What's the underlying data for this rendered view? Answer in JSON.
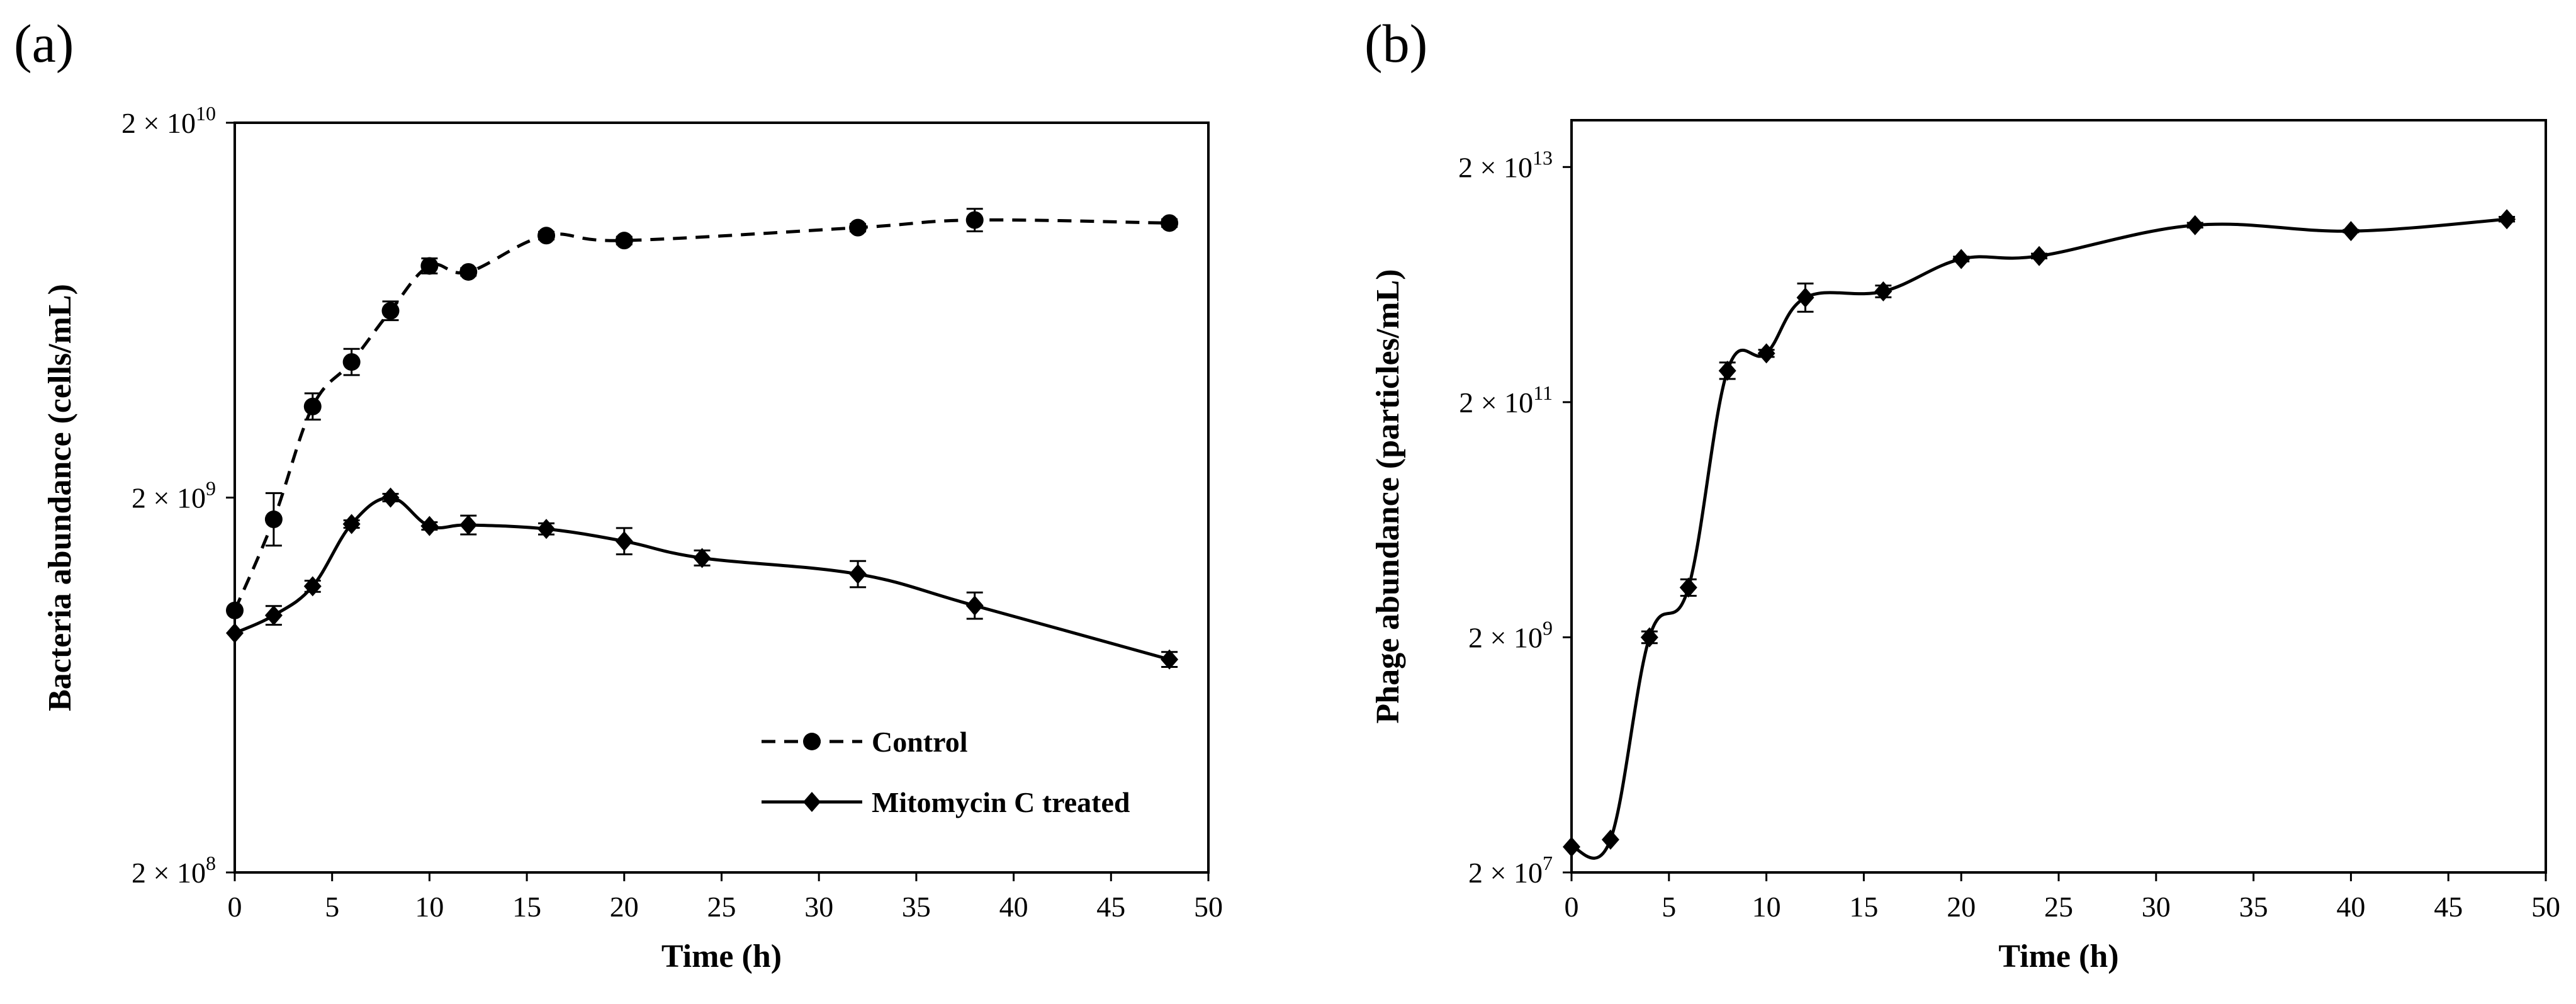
{
  "chart_data": [
    {
      "panel_label": "(a)",
      "type": "line",
      "xlabel": "Time (h)",
      "ylabel": "Bacteria abundance (cells/mL)",
      "yscale": "log",
      "xlim": [
        0,
        50
      ],
      "ylim": [
        200000000,
        20000000000
      ],
      "xticks": [
        0,
        5,
        10,
        15,
        20,
        25,
        30,
        35,
        40,
        45,
        50
      ],
      "xtick_labels": [
        "0",
        "5",
        "10",
        "15",
        "20",
        "25",
        "30",
        "35",
        "40",
        "45",
        "50"
      ],
      "yticks": [
        200000000,
        2000000000,
        20000000000
      ],
      "ytick_labels": [
        {
          "base": "2 × 10",
          "exp": "8"
        },
        {
          "base": "2 × 10",
          "exp": "9"
        },
        {
          "base": "2 × 10",
          "exp": "10"
        }
      ],
      "legend_position": "lower-right",
      "series": [
        {
          "name": "Control",
          "line_style": "dashed",
          "marker": "circle",
          "x": [
            0,
            2,
            4,
            6,
            8,
            10,
            12,
            16,
            20,
            32,
            38,
            48
          ],
          "y": [
            1000000000,
            1750000000,
            3500000000,
            4600000000,
            6300000000,
            8300000000,
            8000000000,
            10000000000,
            9700000000,
            10500000000,
            11000000000,
            10800000000
          ],
          "err": [
            0,
            0.07,
            0.035,
            0.035,
            0.025,
            0.02,
            0.01,
            0.01,
            0.01,
            0.01,
            0.03,
            0.01
          ]
        },
        {
          "name": "Mitomycin C treated",
          "line_style": "solid",
          "marker": "diamond",
          "x": [
            0,
            2,
            4,
            6,
            8,
            10,
            12,
            16,
            20,
            24,
            32,
            38,
            48
          ],
          "y": [
            870000000,
            970000000,
            1160000000,
            1700000000,
            2000000000,
            1680000000,
            1690000000,
            1650000000,
            1530000000,
            1380000000,
            1250000000,
            1030000000,
            740000000
          ],
          "err": [
            0,
            0.025,
            0.015,
            0.01,
            0.01,
            0.01,
            0.025,
            0.015,
            0.035,
            0.02,
            0.035,
            0.035,
            0.02
          ]
        }
      ]
    },
    {
      "panel_label": "(b)",
      "type": "line",
      "xlabel": "Time (h)",
      "ylabel": "Phage abundance (particles/mL)",
      "yscale": "log",
      "xlim": [
        0,
        50
      ],
      "ylim": [
        20000000,
        50000000000000
      ],
      "xticks": [
        0,
        5,
        10,
        15,
        20,
        25,
        30,
        35,
        40,
        45,
        50
      ],
      "xtick_labels": [
        "0",
        "5",
        "10",
        "15",
        "20",
        "25",
        "30",
        "35",
        "40",
        "45",
        "50"
      ],
      "yticks": [
        20000000,
        2000000000,
        200000000000,
        20000000000000
      ],
      "ytick_labels": [
        {
          "base": "2 × 10",
          "exp": "7"
        },
        {
          "base": "2 × 10",
          "exp": "9"
        },
        {
          "base": "2 × 10",
          "exp": "11"
        },
        {
          "base": "2 × 10",
          "exp": "13"
        }
      ],
      "series": [
        {
          "name": "Phage",
          "line_style": "solid",
          "marker": "diamond",
          "x": [
            0,
            2,
            4,
            6,
            8,
            10,
            12,
            16,
            20,
            24,
            32,
            40,
            48
          ],
          "y": [
            33000000,
            38000000,
            2000000000,
            5300000000,
            370000000000,
            520000000000,
            1550000000000,
            1750000000000,
            3300000000000,
            3500000000000,
            6400000000000,
            5700000000000,
            7200000000000
          ],
          "err": [
            0,
            0,
            0.05,
            0.07,
            0.07,
            0.03,
            0.12,
            0.05,
            0.02,
            0.02,
            0.02,
            0.01,
            0.02
          ]
        }
      ]
    }
  ]
}
